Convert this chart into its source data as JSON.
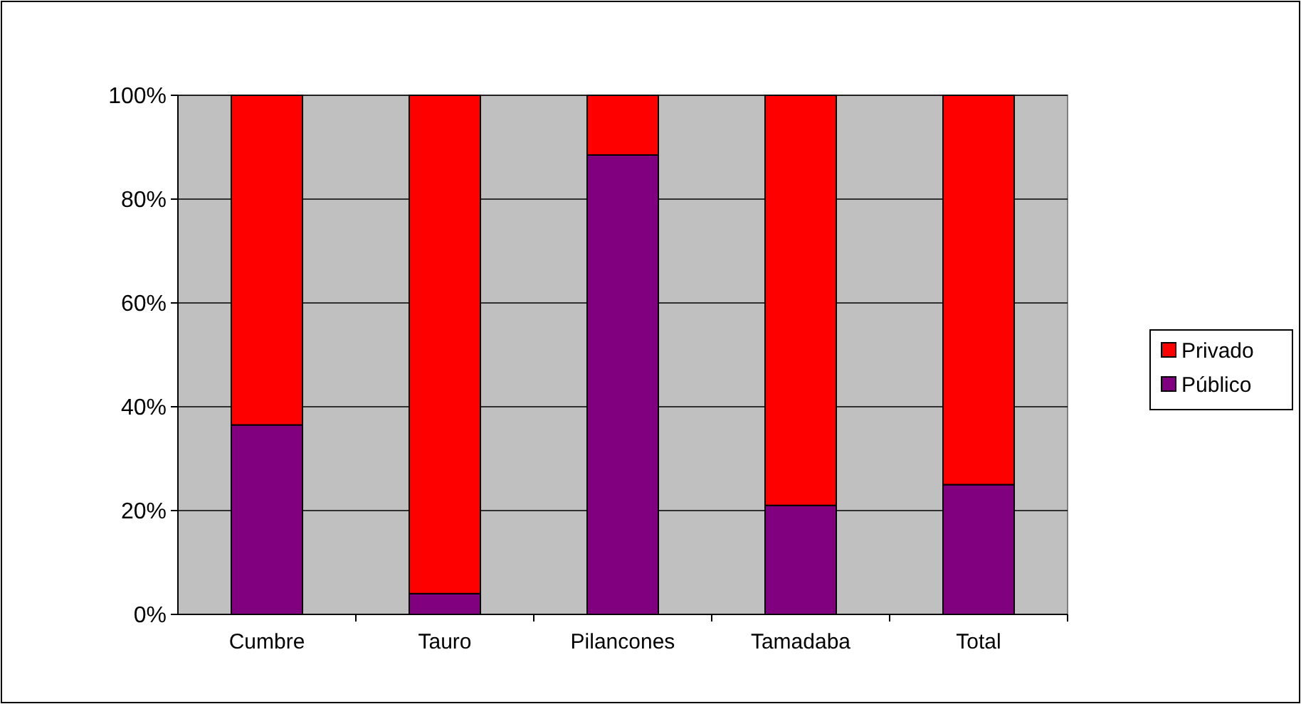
{
  "chart_data": {
    "type": "bar",
    "stacked": true,
    "categories": [
      "Cumbre",
      "Tauro",
      "Pilancones",
      "Tamadaba",
      "Total"
    ],
    "series": [
      {
        "name": "Público",
        "color": "#800080",
        "values": [
          36.5,
          4,
          88.5,
          21,
          25
        ]
      },
      {
        "name": "Privado",
        "color": "#ff0000",
        "values": [
          63.5,
          96,
          11.5,
          79,
          75
        ]
      }
    ],
    "ylim": [
      0,
      100
    ],
    "yticks": [
      {
        "value": 0,
        "label": "0%"
      },
      {
        "value": 20,
        "label": "20%"
      },
      {
        "value": 40,
        "label": "40%"
      },
      {
        "value": 60,
        "label": "60%"
      },
      {
        "value": 80,
        "label": "80%"
      },
      {
        "value": 100,
        "label": "100%"
      }
    ],
    "grid": "y",
    "legend": "right"
  }
}
